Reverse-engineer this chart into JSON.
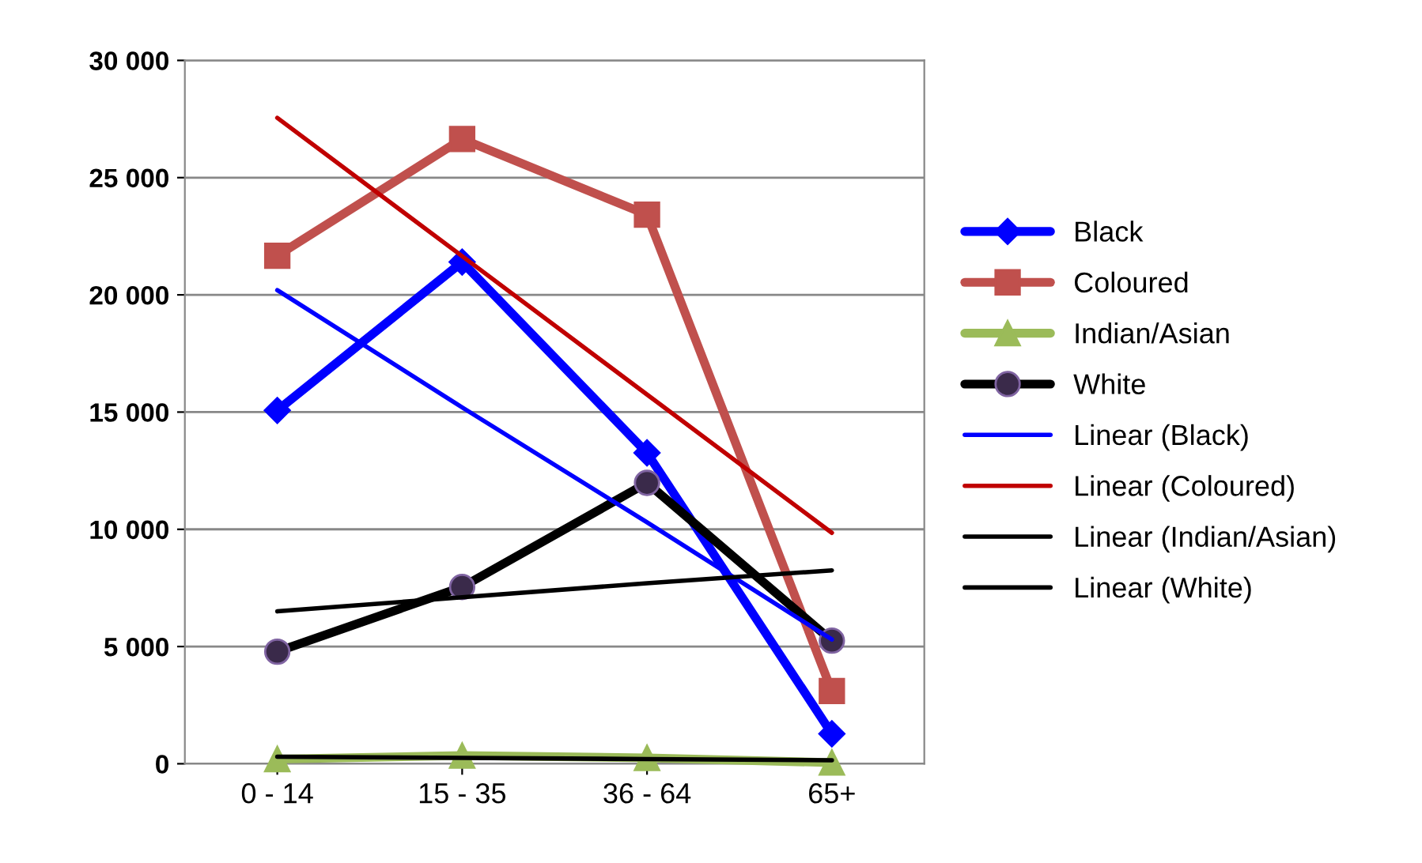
{
  "chart_data": {
    "type": "line",
    "categories": [
      "0 - 14",
      "15 - 35",
      "36 - 64",
      "65+"
    ],
    "ylim": [
      0,
      30000
    ],
    "yticks": [
      {
        "value": 0,
        "label": "0"
      },
      {
        "value": 5000,
        "label": "5 000"
      },
      {
        "value": 10000,
        "label": "10 000"
      },
      {
        "value": 15000,
        "label": "15 000"
      },
      {
        "value": 20000,
        "label": "20 000"
      },
      {
        "value": 25000,
        "label": "25 000"
      },
      {
        "value": 30000,
        "label": "30 000"
      }
    ],
    "grid": "y",
    "legend": "right",
    "series": [
      {
        "name": "Black",
        "color": "#0000ff",
        "marker": "diamond",
        "values": [
          15070,
          21400,
          13260,
          1280
        ]
      },
      {
        "name": "Coloured",
        "color": "#c0504d",
        "marker": "square",
        "values": [
          21670,
          26650,
          23420,
          3100
        ]
      },
      {
        "name": "Indian/Asian",
        "color": "#9bbb59",
        "marker": "triangle",
        "values": [
          200,
          350,
          250,
          50
        ]
      },
      {
        "name": "White",
        "color": "#000000",
        "marker": "circle",
        "values": [
          4780,
          7540,
          11980,
          5250
        ]
      },
      {
        "name": "Linear (Black)",
        "color": "#0000ff",
        "marker": "none",
        "values": [
          20200,
          15200,
          10300,
          5300
        ]
      },
      {
        "name": "Linear (Coloured)",
        "color": "#c00000",
        "marker": "none",
        "values": [
          27550,
          21650,
          15750,
          9850
        ]
      },
      {
        "name": "Linear (Indian/Asian)",
        "color": "#000000",
        "marker": "none",
        "values": [
          300,
          250,
          200,
          150
        ]
      },
      {
        "name": "Linear (White)",
        "color": "#000000",
        "marker": "none",
        "values": [
          6500,
          7100,
          7700,
          8250
        ]
      }
    ]
  }
}
